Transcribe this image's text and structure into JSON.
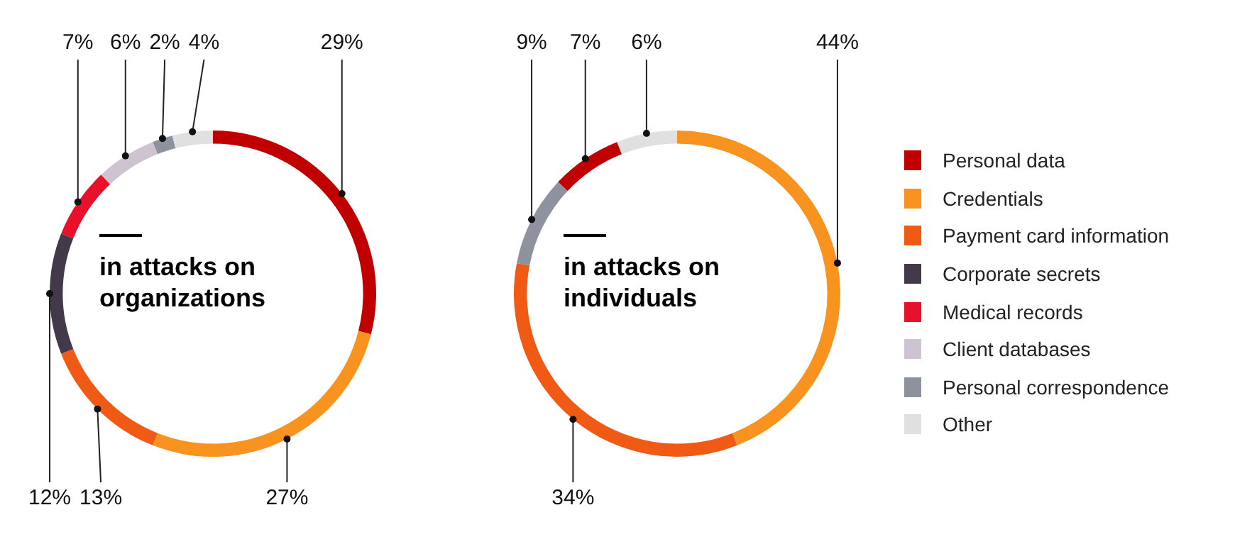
{
  "chart_data": [
    {
      "type": "donut",
      "title": "in attacks on organizations",
      "legend": "right",
      "categories": [
        "Personal data",
        "Credentials",
        "Payment card information",
        "Corporate secrets",
        "Medical records",
        "Client databases",
        "Personal correspondence",
        "Other"
      ],
      "values": [
        29,
        27,
        13,
        12,
        7,
        6,
        2,
        4
      ],
      "value_labels": [
        "29%",
        "27%",
        "13%",
        "12%",
        "7%",
        "6%",
        "2%",
        "4%"
      ],
      "colors": [
        "#c00000",
        "#f7931e",
        "#f05a14",
        "#423a4a",
        "#e8102a",
        "#cdc3d1",
        "#8e919e",
        "#e0e0e0"
      ]
    },
    {
      "type": "donut",
      "title": "in attacks on individuals",
      "categories": [
        null,
        null,
        null,
        null,
        null
      ],
      "values": [
        44,
        34,
        9,
        7,
        6
      ],
      "value_labels": [
        "44%",
        "34%",
        "9%",
        "7%",
        "6%"
      ],
      "colors": [
        "#f7931e",
        "#f05a14",
        "#8e919e",
        "#c00000",
        "#e0e0e0"
      ]
    }
  ]
}
